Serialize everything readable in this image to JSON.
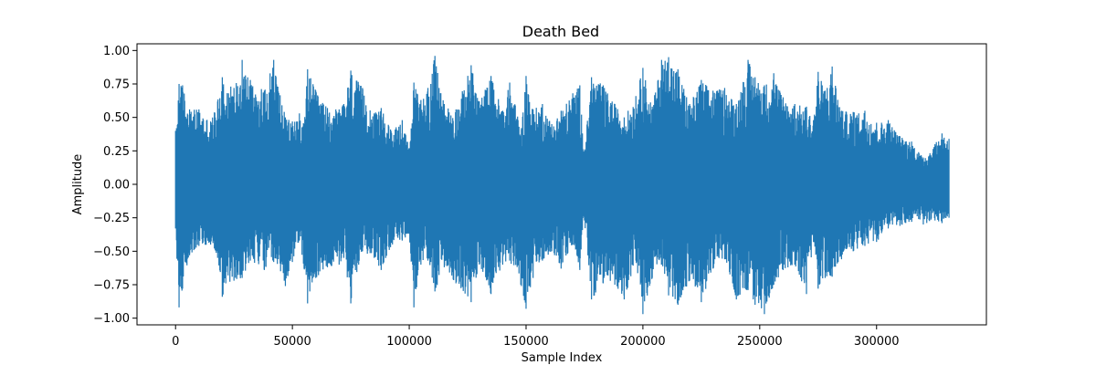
{
  "chart_data": {
    "type": "line",
    "title": "Death Bed",
    "xlabel": "Sample Index",
    "ylabel": "Amplitude",
    "xlim": [
      -16500,
      347000
    ],
    "ylim": [
      -1.05,
      1.05
    ],
    "x_ticks": [
      0,
      50000,
      100000,
      150000,
      200000,
      250000,
      300000
    ],
    "x_tick_labels": [
      "0",
      "50000",
      "100000",
      "150000",
      "200000",
      "250000",
      "300000"
    ],
    "y_ticks": [
      1.0,
      0.75,
      0.5,
      0.25,
      0.0,
      -0.25,
      -0.5,
      -0.75,
      -1.0
    ],
    "y_tick_labels": [
      "1.00",
      "0.75",
      "0.50",
      "0.25",
      "0.00",
      "−0.25",
      "−0.50",
      "−0.75",
      "−1.00"
    ],
    "grid": false,
    "series": [
      {
        "color": "#1f77b4",
        "sample_count": 331000,
        "envelope": {
          "x": [
            0,
            1500,
            3000,
            6000,
            10000,
            15000,
            18000,
            20000,
            25000,
            28500,
            32000,
            38000,
            42000,
            47000,
            50000,
            53000,
            55000,
            56500,
            60000,
            65000,
            70000,
            72000,
            75000,
            80000,
            85000,
            88000,
            92000,
            97000,
            100000,
            102000,
            105000,
            108000,
            111000,
            115000,
            120000,
            126500,
            130000,
            135000,
            140000,
            143000,
            148000,
            150000,
            153000,
            157000,
            161000,
            165000,
            170000,
            173000,
            175000,
            178000,
            183000,
            188000,
            192000,
            197000,
            200000,
            204000,
            208000,
            211000,
            215000,
            220000,
            225000,
            230000,
            235000,
            240000,
            245000,
            248000,
            252000,
            256000,
            260000,
            265000,
            270000,
            273000,
            275000,
            278000,
            281000,
            285000,
            290000,
            295000,
            300000,
            305000,
            310000,
            315000,
            318000,
            320000,
            325000,
            328000,
            331000
          ],
          "max": [
            0.4,
            0.75,
            0.74,
            0.56,
            0.56,
            0.47,
            0.62,
            0.8,
            0.72,
            0.93,
            0.78,
            0.7,
            0.93,
            0.5,
            0.47,
            0.53,
            0.45,
            0.86,
            0.7,
            0.57,
            0.56,
            0.6,
            0.85,
            0.72,
            0.53,
            0.57,
            0.41,
            0.48,
            0.27,
            0.76,
            0.63,
            0.72,
            0.96,
            0.6,
            0.56,
            0.89,
            0.62,
            0.81,
            0.55,
            0.76,
            0.42,
            0.81,
            0.56,
            0.6,
            0.45,
            0.55,
            0.68,
            0.74,
            0.25,
            0.8,
            0.74,
            0.6,
            0.5,
            0.66,
            0.87,
            0.58,
            0.93,
            0.95,
            0.86,
            0.6,
            0.78,
            0.7,
            0.72,
            0.6,
            0.93,
            0.8,
            0.74,
            0.83,
            0.65,
            0.6,
            0.58,
            0.48,
            0.84,
            0.7,
            0.88,
            0.55,
            0.54,
            0.55,
            0.46,
            0.48,
            0.36,
            0.32,
            0.24,
            0.2,
            0.3,
            0.38,
            0.34
          ],
          "min": [
            -0.33,
            -0.92,
            -0.78,
            -0.53,
            -0.46,
            -0.45,
            -0.55,
            -0.84,
            -0.72,
            -0.7,
            -0.57,
            -0.64,
            -0.58,
            -0.76,
            -0.58,
            -0.42,
            -0.63,
            -0.89,
            -0.7,
            -0.62,
            -0.6,
            -0.55,
            -0.89,
            -0.5,
            -0.55,
            -0.64,
            -0.47,
            -0.42,
            -0.37,
            -0.92,
            -0.6,
            -0.57,
            -0.8,
            -0.62,
            -0.74,
            -0.88,
            -0.6,
            -0.82,
            -0.6,
            -0.57,
            -0.76,
            -0.93,
            -0.7,
            -0.57,
            -0.5,
            -0.63,
            -0.45,
            -0.64,
            -0.27,
            -0.86,
            -0.74,
            -0.75,
            -0.86,
            -0.57,
            -0.97,
            -0.7,
            -0.6,
            -0.83,
            -0.9,
            -0.72,
            -0.88,
            -0.63,
            -0.56,
            -0.86,
            -0.79,
            -0.9,
            -0.97,
            -0.75,
            -0.64,
            -0.6,
            -0.82,
            -0.43,
            -0.78,
            -0.7,
            -0.69,
            -0.56,
            -0.5,
            -0.46,
            -0.43,
            -0.33,
            -0.31,
            -0.28,
            -0.26,
            -0.3,
            -0.27,
            -0.29,
            -0.25
          ]
        }
      }
    ]
  }
}
